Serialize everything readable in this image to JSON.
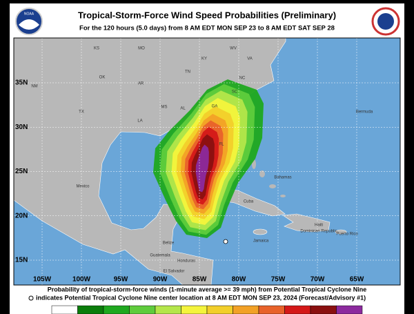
{
  "header": {
    "title": "Tropical-Storm-Force Wind Speed Probabilities (Preliminary)",
    "subtitle": "For the 120 hours (5.0 days) from 8 AM EDT MON SEP 23 to 8 AM EDT SAT SEP 28",
    "logo_text": "NOAA"
  },
  "map": {
    "lat_labels": [
      "35N",
      "30N",
      "25N",
      "20N",
      "15N"
    ],
    "lon_labels": [
      "105W",
      "100W",
      "95W",
      "90W",
      "85W",
      "80W",
      "75W",
      "70W",
      "65W"
    ],
    "place_labels": [
      "KS",
      "MO",
      "KY",
      "WV",
      "VA",
      "NM",
      "OK",
      "AR",
      "TN",
      "NC",
      "TX",
      "MS",
      "AL",
      "GA",
      "SC",
      "LA",
      "FL",
      "Bermuda",
      "Mexico",
      "Bahamas",
      "Cuba",
      "Jamaica",
      "Haiti",
      "Dominican Republic",
      "Puerto Rico",
      "Belize",
      "Guatemala",
      "Honduras",
      "El Salvador"
    ]
  },
  "footer": {
    "line1": "Probability of tropical-storm-force winds (1-minute average >= 39 mph) from Potential Tropical Cyclone Nine",
    "line2": "indicates Potential Tropical Cyclone Nine center location at 8 AM EDT MON SEP 23, 2024 (Forecast/Advisory #1)"
  },
  "legend_colors": [
    "#ffffff",
    "#0b7d0b",
    "#1fa81f",
    "#5fcc3c",
    "#b4e64a",
    "#f4f43c",
    "#f2cf2a",
    "#f2a126",
    "#e8622a",
    "#d41818",
    "#8a1010",
    "#8c2a9e"
  ]
}
